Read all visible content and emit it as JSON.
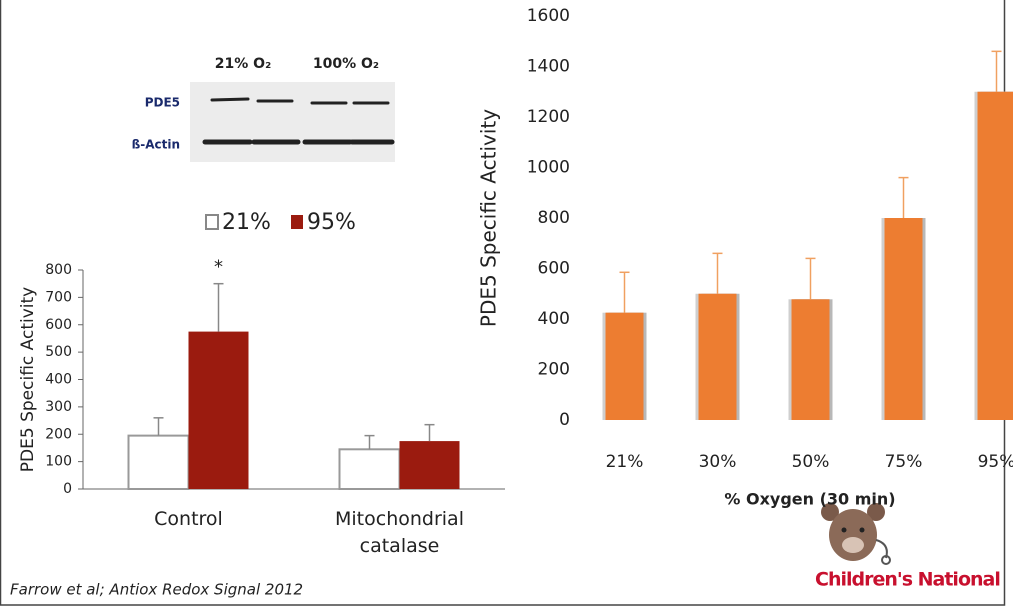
{
  "blot": {
    "columns": [
      "21% O₂",
      "100% O₂"
    ],
    "rows": [
      "PDE5",
      "ß-Actin"
    ]
  },
  "chart_data": [
    {
      "type": "bar",
      "y_label": "PDE5 Specific Activity",
      "annotation": "*",
      "categories": [
        "Control",
        "Mitochondrial catalase"
      ],
      "series": [
        {
          "name": "21%",
          "color": "#ffffff",
          "values": [
            195,
            145
          ],
          "errors": [
            65,
            50
          ]
        },
        {
          "name": "95%",
          "color": "#9b1b0f",
          "values": [
            575,
            175
          ],
          "errors": [
            175,
            60
          ]
        }
      ],
      "ylim": [
        0,
        800
      ],
      "yticks": [
        0,
        100,
        200,
        300,
        400,
        500,
        600,
        700,
        800
      ],
      "grid": false
    },
    {
      "type": "bar",
      "x_label": "% Oxygen (30 min)",
      "y_label": "PDE5 Specific Activity",
      "categories": [
        "21%",
        "30%",
        "50%",
        "75%",
        "95%"
      ],
      "values": [
        425,
        500,
        478,
        800,
        1300
      ],
      "errors": [
        160,
        160,
        162,
        160,
        160
      ],
      "color": "#ed7d31",
      "ylim": [
        0,
        1600
      ],
      "yticks": [
        0,
        200,
        400,
        600,
        800,
        1000,
        1200,
        1400,
        1600
      ],
      "grid": false
    }
  ],
  "citation": "Farrow et al; Antiox Redox Signal 2012",
  "logo": "Children's National"
}
